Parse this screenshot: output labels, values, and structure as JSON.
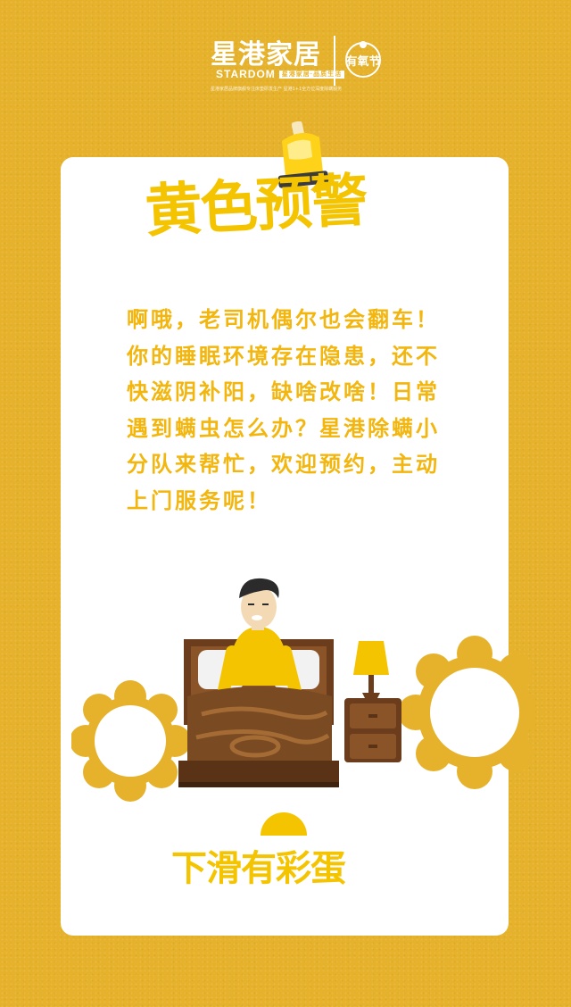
{
  "brand": {
    "name": "星港家居",
    "sub_name": "STARDOM",
    "sub_badge": "星港家居·品质生活",
    "festival_label": "有氧节",
    "tagline": "星港家居品牌旗舰专注床垫研发生产 星港1+1全方位深度除螨服务"
  },
  "card": {
    "title": "黄色预警",
    "body": "啊哦，老司机偶尔也会翻车！你的睡眠环境存在隐患，还不快滋阴补阳，缺啥改啥！日常遇到螨虫怎么办？星港除螨小分队来帮忙，欢迎预约，主动上门服务呢！",
    "cta": "下滑有彩蛋"
  },
  "colors": {
    "background": "#E6B22B",
    "accent_yellow": "#F5C400",
    "text_yellow": "#F2B60F",
    "wood_brown": "#7A4A22",
    "card": "#FFFFFF"
  },
  "icons": {
    "siren": "siren-light-icon",
    "mite_left": "dust-mite-icon",
    "mite_right": "dust-mite-icon",
    "lamp": "lamp-icon",
    "sun": "sun-icon"
  }
}
